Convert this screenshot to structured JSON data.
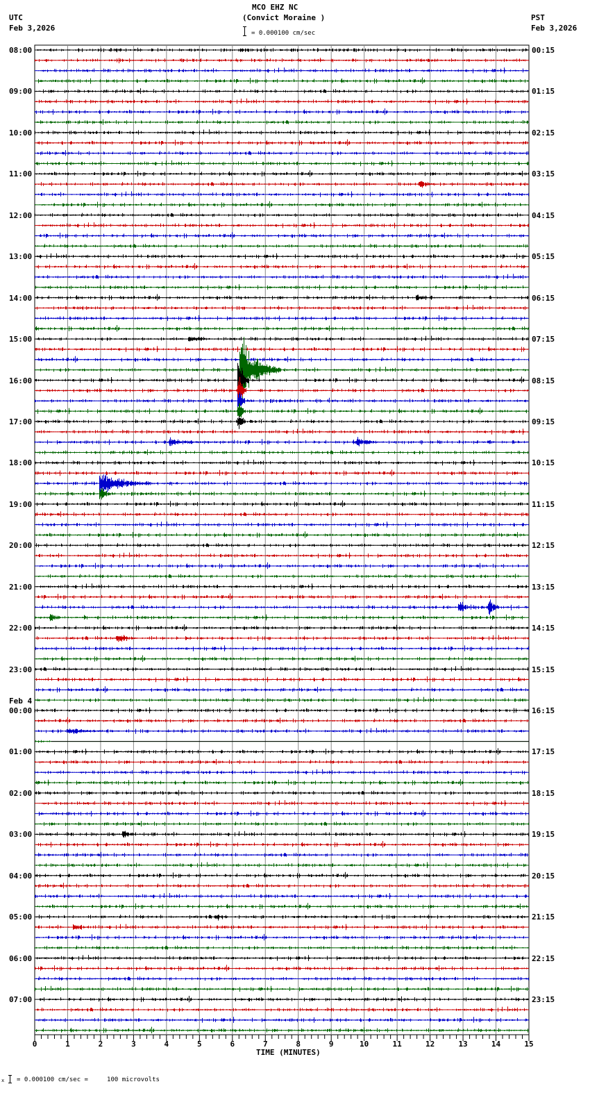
{
  "header": {
    "station": "MCO EHZ NC",
    "location": "(Convict Moraine )",
    "scale_label": "= 0.000100 cm/sec",
    "left_tz": "UTC",
    "left_date": "Feb 3,2026",
    "right_tz": "PST",
    "right_date": "Feb 3,2026"
  },
  "footer": {
    "scale_note": "= 0.000100 cm/sec =     100 microvolts",
    "xlabel": "TIME (MINUTES)"
  },
  "chart_data": {
    "type": "line",
    "title": "MCO EHZ NC (Convict Moraine ) helicorder",
    "xlabel": "TIME (MINUTES)",
    "ylabel": "",
    "xlim": [
      0,
      15
    ],
    "x_ticks": [
      "0",
      "1",
      "2",
      "3",
      "4",
      "5",
      "6",
      "7",
      "8",
      "9",
      "10",
      "11",
      "12",
      "13",
      "14",
      "15"
    ],
    "grid": true,
    "traces_per_hour": 4,
    "trace_colors": [
      "#000000",
      "#cc0000",
      "#0000cc",
      "#006600"
    ],
    "left_labels": [
      "08:00",
      "09:00",
      "10:00",
      "11:00",
      "12:00",
      "13:00",
      "14:00",
      "15:00",
      "16:00",
      "17:00",
      "18:00",
      "19:00",
      "20:00",
      "21:00",
      "22:00",
      "23:00",
      "00:00",
      "01:00",
      "02:00",
      "03:00",
      "04:00",
      "05:00",
      "06:00",
      "07:00"
    ],
    "left_date_change": {
      "index": 16,
      "label": "Feb 4"
    },
    "right_labels": [
      "00:15",
      "01:15",
      "02:15",
      "03:15",
      "04:15",
      "05:15",
      "06:15",
      "07:15",
      "08:15",
      "09:15",
      "10:15",
      "11:15",
      "12:15",
      "13:15",
      "14:15",
      "15:15",
      "16:15",
      "17:15",
      "18:15",
      "19:15",
      "20:15",
      "21:15",
      "22:15",
      "23:15"
    ],
    "events": [
      {
        "trace": 31,
        "minute": 6.25,
        "amp": 62,
        "dur": 1.2,
        "note": "large local event 15:45 UTC"
      },
      {
        "trace": 32,
        "minute": 6.2,
        "amp": 40,
        "dur": 0.3
      },
      {
        "trace": 33,
        "minute": 6.2,
        "amp": 30,
        "dur": 0.2
      },
      {
        "trace": 34,
        "minute": 6.2,
        "amp": 22,
        "dur": 0.2
      },
      {
        "trace": 35,
        "minute": 6.2,
        "amp": 18,
        "dur": 0.2
      },
      {
        "trace": 36,
        "minute": 6.2,
        "amp": 14,
        "dur": 0.2
      },
      {
        "trace": 42,
        "minute": 2.0,
        "amp": 20,
        "dur": 1.5,
        "note": "event 18:30 UTC"
      },
      {
        "trace": 43,
        "minute": 2.0,
        "amp": 14,
        "dur": 0.3
      },
      {
        "trace": 38,
        "minute": 4.1,
        "amp": 6,
        "dur": 1.0
      },
      {
        "trace": 38,
        "minute": 9.8,
        "amp": 7,
        "dur": 0.8
      },
      {
        "trace": 54,
        "minute": 13.8,
        "amp": 14,
        "dur": 0.3
      },
      {
        "trace": 54,
        "minute": 12.9,
        "amp": 9,
        "dur": 0.5
      },
      {
        "trace": 57,
        "minute": 2.5,
        "amp": 7,
        "dur": 0.6
      },
      {
        "trace": 76,
        "minute": 2.7,
        "amp": 8,
        "dur": 0.3
      },
      {
        "trace": 13,
        "minute": 11.7,
        "amp": 6,
        "dur": 0.4
      },
      {
        "trace": 24,
        "minute": 11.6,
        "amp": 5,
        "dur": 0.5
      },
      {
        "trace": 28,
        "minute": 4.7,
        "amp": 5,
        "dur": 0.6
      },
      {
        "trace": 55,
        "minute": 0.5,
        "amp": 6,
        "dur": 0.3
      },
      {
        "trace": 85,
        "minute": 1.2,
        "amp": 5,
        "dur": 0.4
      },
      {
        "trace": 84,
        "minute": 5.5,
        "amp": 4,
        "dur": 0.5
      },
      {
        "trace": 66,
        "minute": 1.0,
        "amp": 5,
        "dur": 1.5
      }
    ],
    "gap": {
      "trace": 67,
      "from_minute": 0.5,
      "to_minute": 15
    }
  }
}
